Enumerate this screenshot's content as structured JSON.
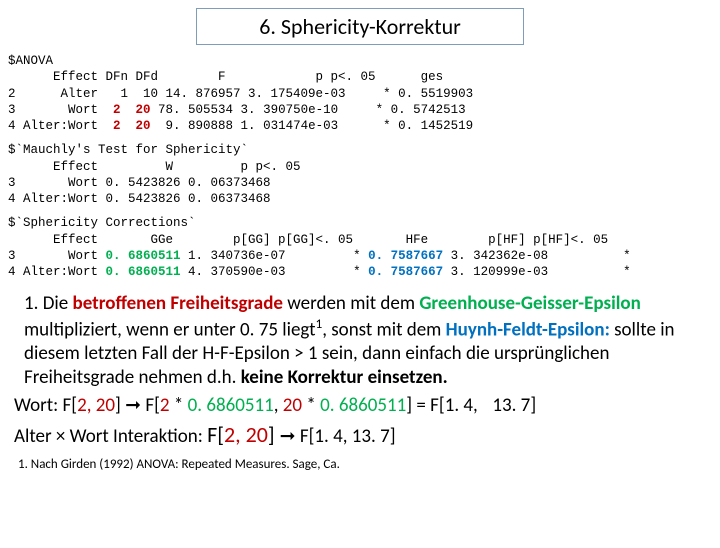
{
  "title": "6. Sphericity-Korrektur",
  "anova": {
    "header": "$ANOVA",
    "cols": "      Effect DFn DFd        F            p p<. 05      ges",
    "r1a": "2      Alter   1  10 ",
    "r1b": "14. 876957 3. 175409e-03     * 0. 5519903",
    "r2a": "3       Wort  ",
    "r2n": "2  20 ",
    "r2b": "78. 505534 3. 390750e-10     * 0. 5742513",
    "r3a": "4 Alter:Wort  ",
    "r3n": "2  20  ",
    "r3b": "9. 890888 1. 031474e-03      * 0. 1452519"
  },
  "mauchly": {
    "header": "$`Mauchly's Test for Sphericity`",
    "cols": "      Effect         W         p p<. 05",
    "r1": "3       Wort 0. 5423826 0. 06373468",
    "r2": "4 Alter:Wort 0. 5423826 0. 06373468"
  },
  "corr": {
    "header": "$`Sphericity Corrections`",
    "cols": "      Effect       GGe        p[GG] p[GG]<. 05       HFe        p[HF] p[HF]<. 05",
    "r1a": "3       Wort ",
    "r1g": "0. 6860511 ",
    "r1b": "1. 340736e-07         * ",
    "r1h": "0. 7587667 ",
    "r1c": "3. 342362e-08          *",
    "r2a": "4 Alter:Wort ",
    "r2g": "0. 6860511 ",
    "r2b": "4. 370590e-03         * ",
    "r2h": "0. 7587667 ",
    "r2c": "3. 120999e-03          *"
  },
  "para1": {
    "t1": "1. Die ",
    "t2": "betroffenen Freiheitsgrade ",
    "t3": "werden mit dem ",
    "t4": "Greenhouse-Geisser-Epsilon ",
    "t5": "multipliziert, wenn er unter 0. 75 liegt",
    "sup": "1",
    "t6": ", sonst mit dem ",
    "t7": "Huynh-Feldt-Epsilon: ",
    "t8": "sollte in diesem letzten Fall der H-F-Epsilon > 1 sein, dann einfach die ursprünglichen Freiheitsgrade nehmen d.h. ",
    "t9": "keine Korrektur einsetzen."
  },
  "line2": {
    "a": "Wort: F[",
    "b": "2, 20",
    "c": "] ➞ F[",
    "d": "2 ",
    "e": "* ",
    "f": "0. 6860511",
    "g": ", ",
    "h": "20 ",
    "i": "* ",
    "j": "0. 6860511",
    "k": "] = F[1. 4,  13. 7]"
  },
  "line3": {
    "a": "Alter × Wort Interaktion: ",
    "b": "F[",
    "c": "2, 20",
    "d": "] ",
    "e": "➞  F[1. 4, 13. 7]"
  },
  "footnote": "1. Nach Girden (1992) ANOVA: Repeated Measures. Sage, Ca."
}
